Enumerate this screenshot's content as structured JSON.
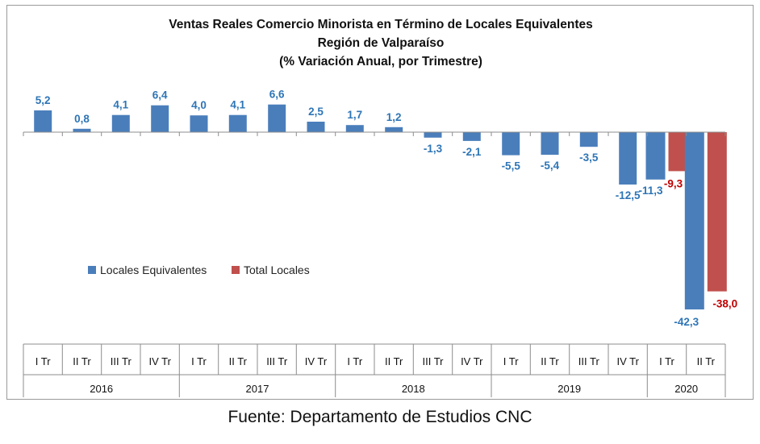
{
  "chart_data": {
    "type": "bar",
    "title_lines": [
      "Ventas Reales Comercio Minorista  en Término de Locales Equivalentes",
      "Región de Valparaíso",
      "(% Variación Anual, por Trimestre)"
    ],
    "categories": [
      "I Tr",
      "II Tr",
      "III Tr",
      "IV Tr",
      "I Tr",
      "II Tr",
      "III Tr",
      "IV Tr",
      "I Tr",
      "II Tr",
      "III Tr",
      "IV Tr",
      "I Tr",
      "II Tr",
      "III Tr",
      "IV Tr",
      "I Tr",
      "II Tr"
    ],
    "year_groups": [
      {
        "label": "2016",
        "count": 4
      },
      {
        "label": "2017",
        "count": 4
      },
      {
        "label": "2018",
        "count": 4
      },
      {
        "label": "2019",
        "count": 4
      },
      {
        "label": "2020",
        "count": 2
      }
    ],
    "series": [
      {
        "name": "Locales Equivalentes",
        "color": "#4a7ebb",
        "label_color": "#2e75b6",
        "values": [
          5.2,
          0.8,
          4.1,
          6.4,
          4.0,
          4.1,
          6.6,
          2.5,
          1.7,
          1.2,
          -1.3,
          -2.1,
          -5.5,
          -5.4,
          -3.5,
          -12.5,
          -11.3,
          -42.3
        ],
        "labels": [
          "5,2",
          "0,8",
          "4,1",
          "6,4",
          "4,0",
          "4,1",
          "6,6",
          "2,5",
          "1,7",
          "1,2",
          "-1,3",
          "-2,1",
          "-5,5",
          "-5,4",
          "-3,5",
          "-12,5",
          "-11,3",
          "-42,3"
        ]
      },
      {
        "name": "Total Locales",
        "color": "#c0504d",
        "label_color": "#c00000",
        "values": [
          null,
          null,
          null,
          null,
          null,
          null,
          null,
          null,
          null,
          null,
          null,
          null,
          null,
          null,
          null,
          null,
          -9.3,
          -38.0
        ],
        "labels": [
          "",
          "",
          "",
          "",
          "",
          "",
          "",
          "",
          "",
          "",
          "",
          "",
          "",
          "",
          "",
          "",
          "-9,3",
          "-38,0"
        ]
      }
    ],
    "legend_position": "left-middle",
    "grid": false,
    "ylim": [
      -45,
      8
    ]
  },
  "source_note": "Fuente: Departamento de Estudios CNC"
}
